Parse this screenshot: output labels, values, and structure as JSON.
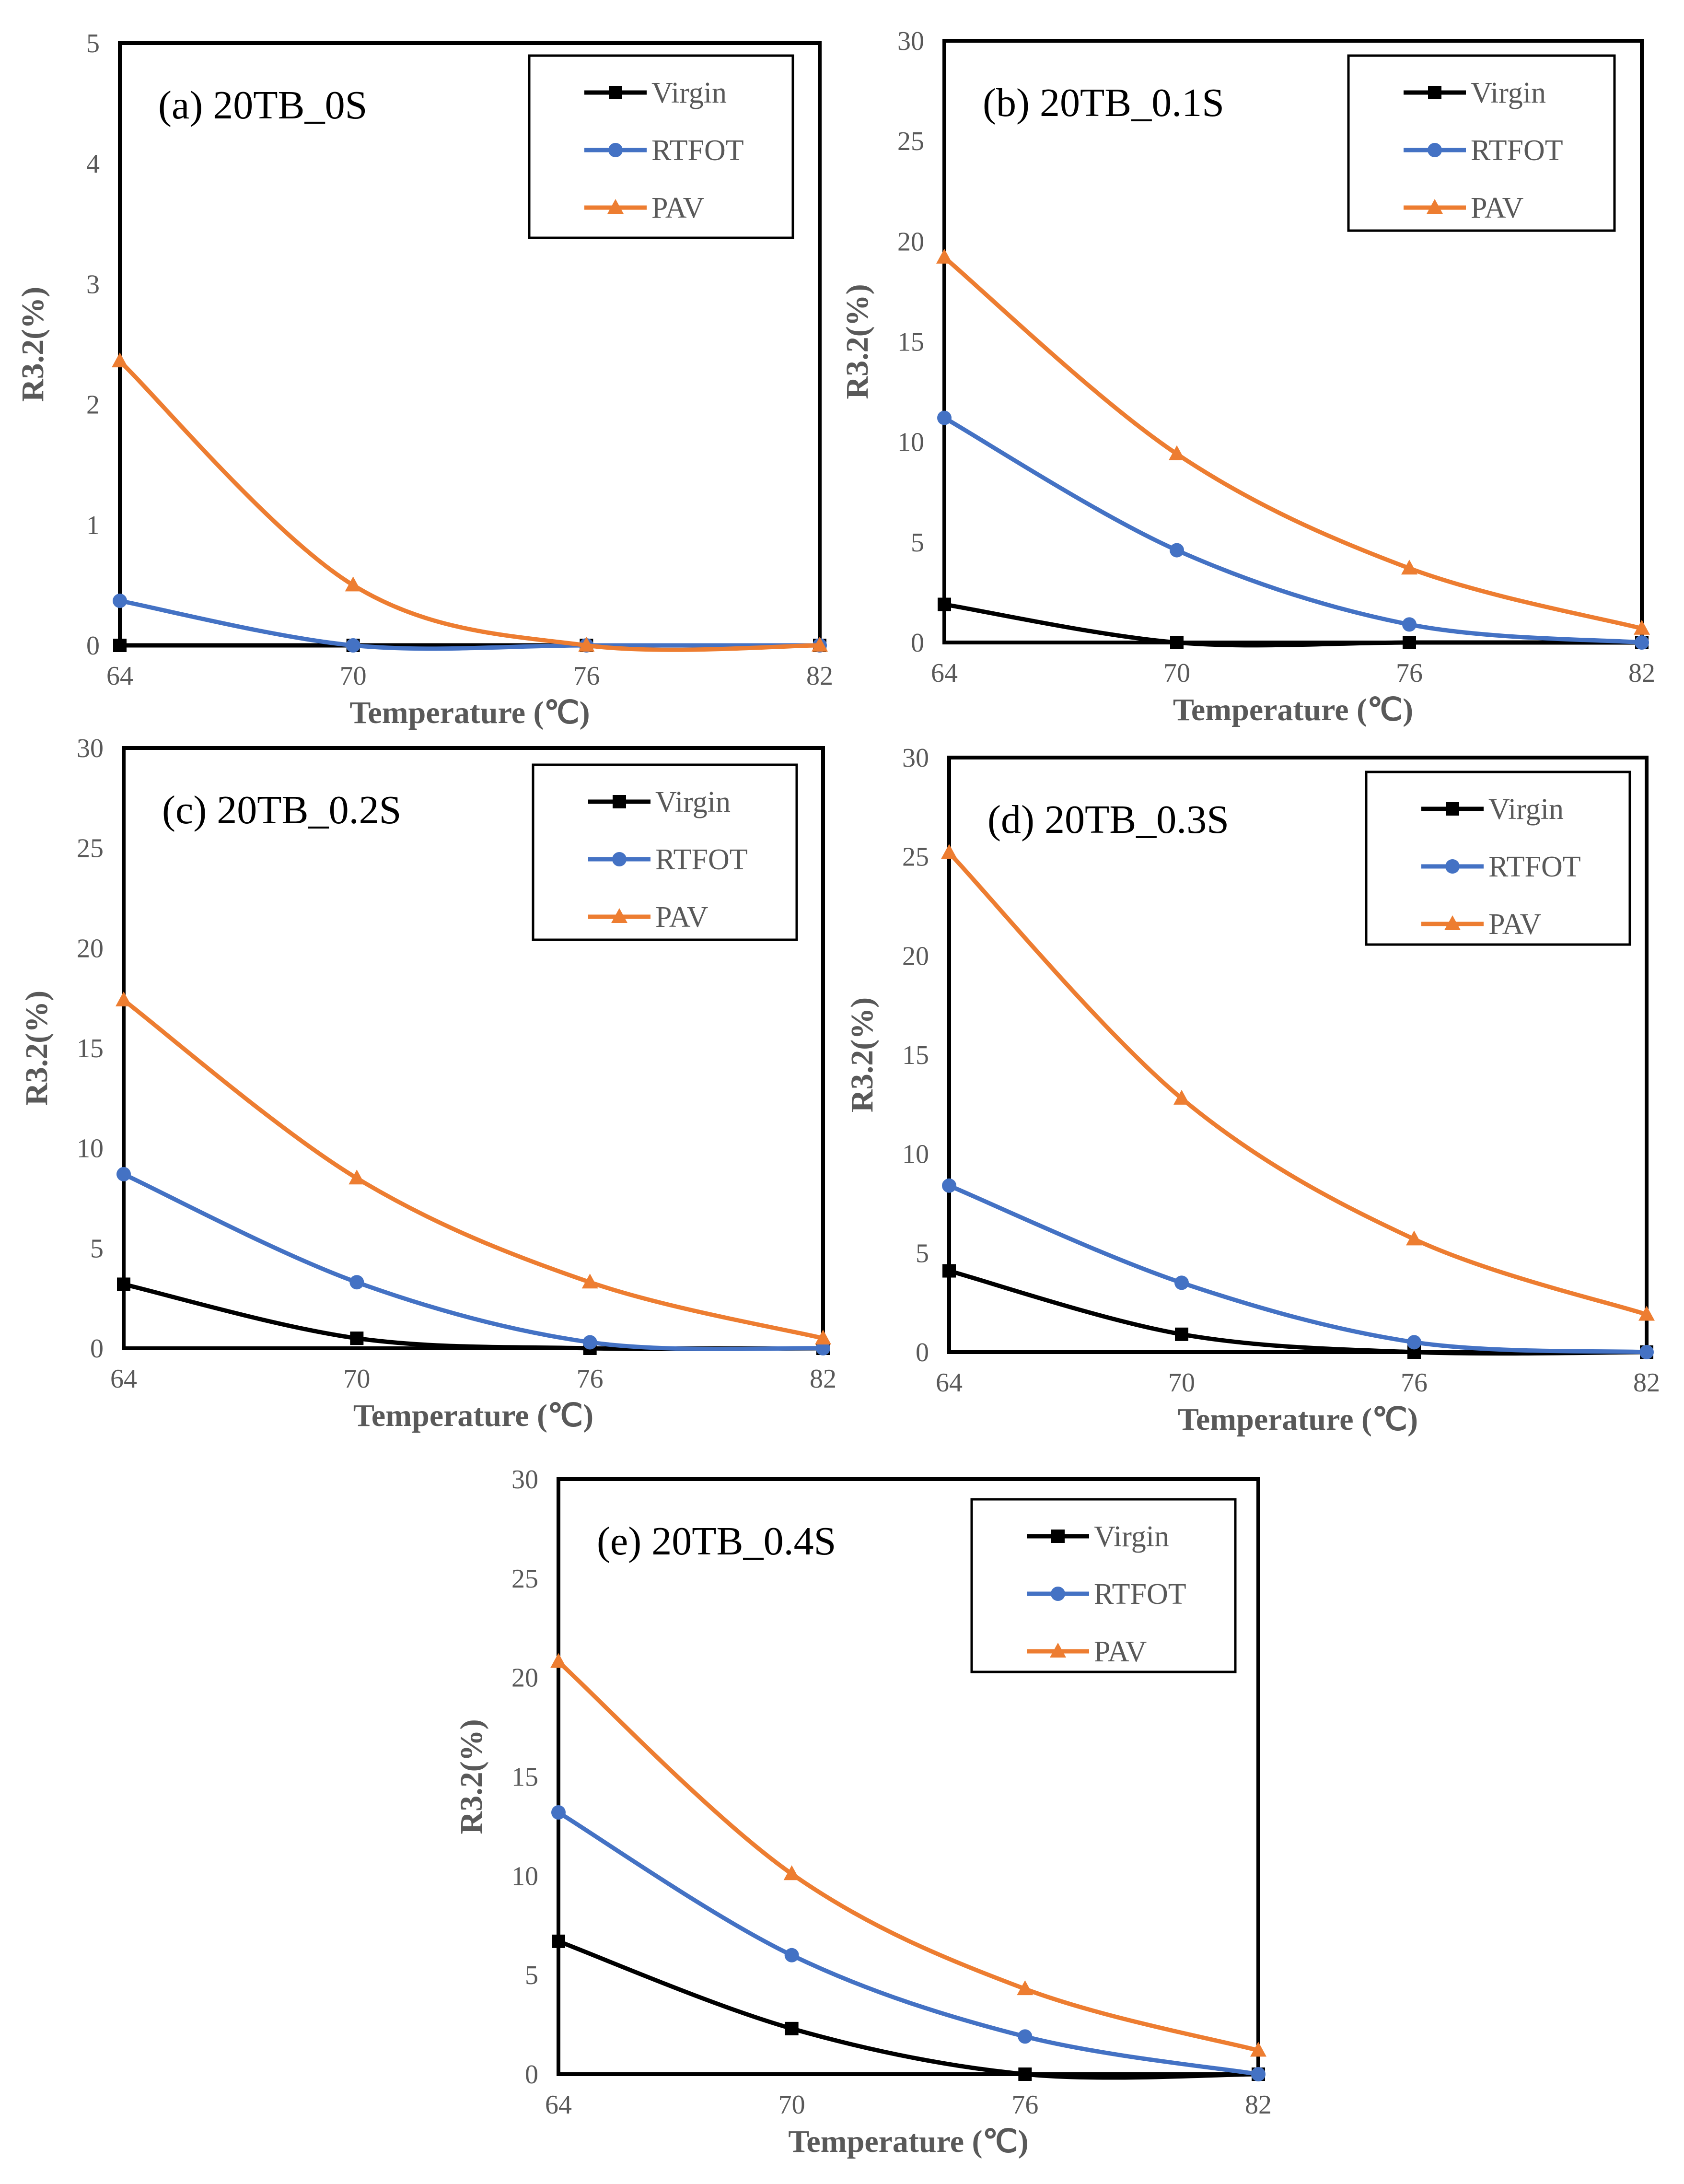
{
  "figure": {
    "colors": {
      "Virgin": "#000000",
      "RTFOT": "#4472C4",
      "PAV": "#ED7D31"
    }
  },
  "chart_data": [
    {
      "type": "line",
      "title": "(a) 20TB_0S",
      "xlabel": "Temperature (℃)",
      "ylabel": "R3.2(%)",
      "categories": [
        "64",
        "70",
        "76",
        "82"
      ],
      "x": [
        64,
        70,
        76,
        82
      ],
      "ylim": [
        0,
        5
      ],
      "yticks": [
        0,
        1,
        2,
        3,
        4,
        5
      ],
      "legend": "top-right",
      "grid": false,
      "series": [
        {
          "name": "Virgin",
          "marker": "square",
          "values": [
            0,
            0,
            0,
            0
          ]
        },
        {
          "name": "RTFOT",
          "marker": "circle",
          "values": [
            0.37,
            0,
            0,
            0
          ]
        },
        {
          "name": "PAV",
          "marker": "triangle",
          "values": [
            2.36,
            0.5,
            0,
            0
          ]
        }
      ]
    },
    {
      "type": "line",
      "title": "(b) 20TB_0.1S",
      "xlabel": "Temperature (℃)",
      "ylabel": "R3.2(%)",
      "categories": [
        "64",
        "70",
        "76",
        "82"
      ],
      "x": [
        64,
        70,
        76,
        82
      ],
      "ylim": [
        0,
        30
      ],
      "yticks": [
        0,
        5,
        10,
        15,
        20,
        25,
        30
      ],
      "legend": "top-right",
      "grid": false,
      "series": [
        {
          "name": "Virgin",
          "marker": "square",
          "values": [
            1.9,
            0,
            0,
            0
          ]
        },
        {
          "name": "RTFOT",
          "marker": "circle",
          "values": [
            11.2,
            4.6,
            0.9,
            0
          ]
        },
        {
          "name": "PAV",
          "marker": "triangle",
          "values": [
            19.2,
            9.4,
            3.7,
            0.7
          ]
        }
      ]
    },
    {
      "type": "line",
      "title": "(c) 20TB_0.2S",
      "xlabel": "Temperature (℃)",
      "ylabel": "R3.2(%)",
      "categories": [
        "64",
        "70",
        "76",
        "82"
      ],
      "x": [
        64,
        70,
        76,
        82
      ],
      "ylim": [
        0,
        30
      ],
      "yticks": [
        0,
        5,
        10,
        15,
        20,
        25,
        30
      ],
      "legend": "top-right",
      "grid": false,
      "series": [
        {
          "name": "Virgin",
          "marker": "square",
          "values": [
            3.2,
            0.5,
            0,
            0
          ]
        },
        {
          "name": "RTFOT",
          "marker": "circle",
          "values": [
            8.7,
            3.3,
            0.3,
            0
          ]
        },
        {
          "name": "PAV",
          "marker": "triangle",
          "values": [
            17.4,
            8.5,
            3.3,
            0.5
          ]
        }
      ]
    },
    {
      "type": "line",
      "title": "(d) 20TB_0.3S",
      "xlabel": "Temperature (℃)",
      "ylabel": "R3.2(%)",
      "categories": [
        "64",
        "70",
        "76",
        "82"
      ],
      "x": [
        64,
        70,
        76,
        82
      ],
      "ylim": [
        0,
        30
      ],
      "yticks": [
        0,
        5,
        10,
        15,
        20,
        25,
        30
      ],
      "legend": "top-right",
      "grid": false,
      "series": [
        {
          "name": "Virgin",
          "marker": "square",
          "values": [
            4.1,
            0.9,
            0,
            0
          ]
        },
        {
          "name": "RTFOT",
          "marker": "circle",
          "values": [
            8.4,
            3.5,
            0.5,
            0
          ]
        },
        {
          "name": "PAV",
          "marker": "triangle",
          "values": [
            25.2,
            12.8,
            5.7,
            1.9
          ]
        }
      ]
    },
    {
      "type": "line",
      "title": "(e) 20TB_0.4S",
      "xlabel": "Temperature (℃)",
      "ylabel": "R3.2(%)",
      "categories": [
        "64",
        "70",
        "76",
        "82"
      ],
      "x": [
        64,
        70,
        76,
        82
      ],
      "ylim": [
        0,
        30
      ],
      "yticks": [
        0,
        5,
        10,
        15,
        20,
        25,
        30
      ],
      "legend": "top-right",
      "grid": false,
      "series": [
        {
          "name": "Virgin",
          "marker": "square",
          "values": [
            6.7,
            2.3,
            0,
            0
          ]
        },
        {
          "name": "RTFOT",
          "marker": "circle",
          "values": [
            13.2,
            6.0,
            1.9,
            0
          ]
        },
        {
          "name": "PAV",
          "marker": "triangle",
          "values": [
            20.8,
            10.1,
            4.3,
            1.2
          ]
        }
      ]
    }
  ]
}
